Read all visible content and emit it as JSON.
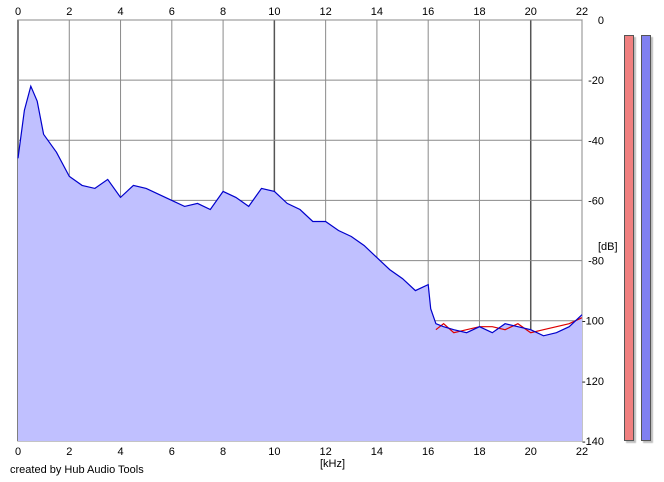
{
  "chart_data": {
    "type": "area",
    "xlabel": "[kHz]",
    "ylabel": "[dB]",
    "xlim": [
      0,
      22
    ],
    "ylim": [
      -140,
      0
    ],
    "x_ticks": [
      "0",
      "2",
      "4",
      "6",
      "8",
      "10",
      "12",
      "14",
      "16",
      "18",
      "20",
      "22"
    ],
    "y_ticks": [
      "0",
      "-20",
      "-40",
      "-60",
      "-80",
      "-100",
      "-120",
      "-140"
    ],
    "grid": true,
    "series": [
      {
        "color": "#0000cc",
        "fill": "#c0c0ff",
        "x": [
          0,
          0.25,
          0.5,
          0.75,
          1,
          1.5,
          2,
          2.5,
          3,
          3.5,
          4,
          4.5,
          5,
          5.5,
          6,
          6.5,
          7,
          7.5,
          8,
          8.5,
          9,
          9.5,
          10,
          10.5,
          11,
          11.5,
          12,
          12.5,
          13,
          13.5,
          14,
          14.5,
          15,
          15.5,
          16,
          16.1,
          16.3,
          16.6,
          17,
          17.5,
          18,
          18.5,
          19,
          19.5,
          20,
          20.5,
          21,
          21.5,
          22
        ],
        "y": [
          -46,
          -30,
          -22,
          -27,
          -38,
          -44,
          -52,
          -55,
          -56,
          -53,
          -59,
          -55,
          -56,
          -58,
          -60,
          -62,
          -61,
          -63,
          -57,
          -59,
          -62,
          -56,
          -57,
          -61,
          -63,
          -67,
          -67,
          -70,
          -72,
          -75,
          -79,
          -83,
          -86,
          -90,
          -88,
          -96,
          -101,
          -102,
          -103,
          -104,
          -102,
          -104,
          -101,
          -102,
          -103,
          -105,
          -104,
          -102,
          -98
        ]
      },
      {
        "color": "#dd0000",
        "x": [
          16.3,
          16.6,
          17,
          17.5,
          18,
          18.5,
          19,
          19.5,
          20,
          20.5,
          21,
          21.5,
          22
        ],
        "y": [
          -103,
          -101,
          -104,
          -103,
          -102,
          -102,
          -103,
          -101,
          -104,
          -103,
          -102,
          -101,
          -99
        ]
      }
    ]
  },
  "footer": {
    "credit": "created by Hub Audio Tools"
  },
  "meters": {
    "left_color": "#f08080",
    "right_color": "#8080f0"
  }
}
